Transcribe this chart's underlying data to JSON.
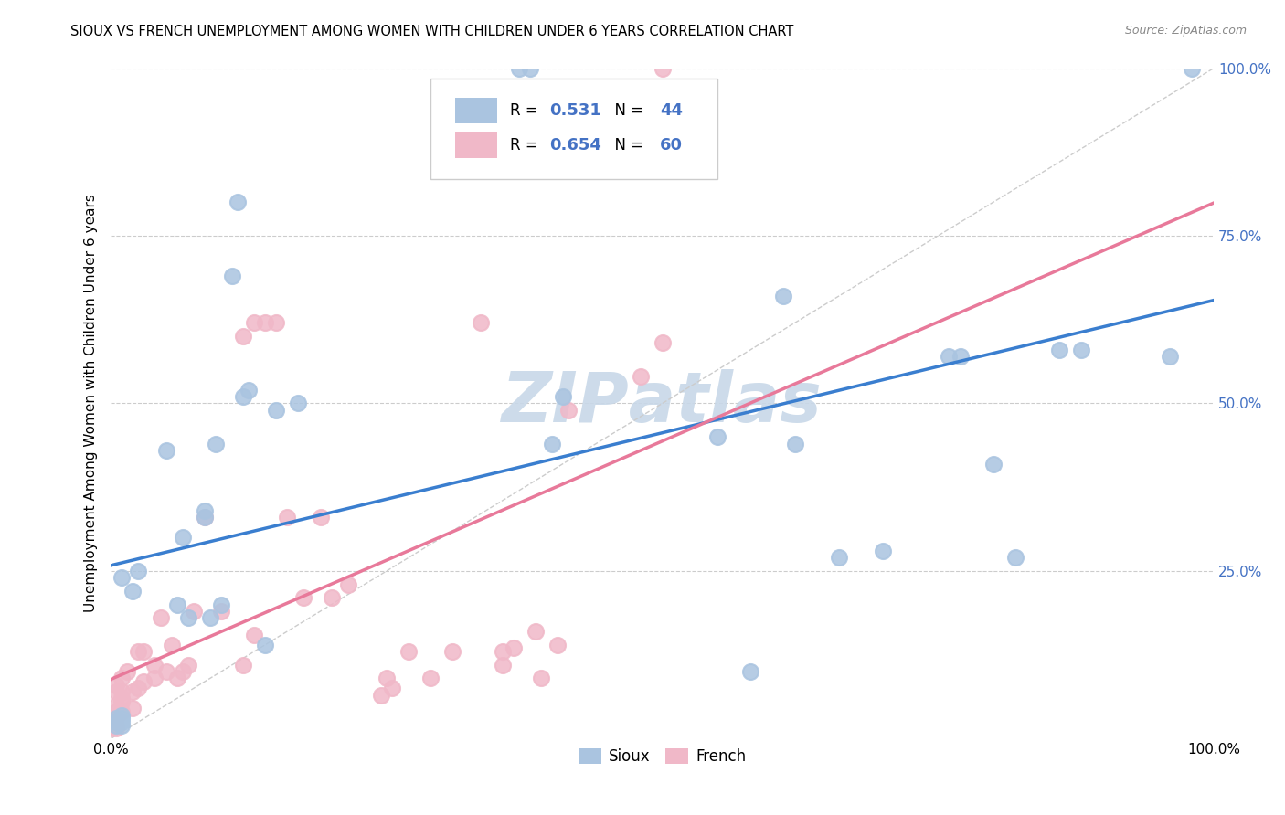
{
  "title": "SIOUX VS FRENCH UNEMPLOYMENT AMONG WOMEN WITH CHILDREN UNDER 6 YEARS CORRELATION CHART",
  "source": "Source: ZipAtlas.com",
  "ylabel": "Unemployment Among Women with Children Under 6 years",
  "xlim": [
    0,
    1.0
  ],
  "ylim": [
    0,
    1.0
  ],
  "sioux_color": "#aac4e0",
  "french_color": "#f0b8c8",
  "sioux_R": 0.531,
  "sioux_N": 44,
  "french_R": 0.654,
  "french_N": 60,
  "sioux_line_color": "#3a7ecf",
  "french_line_color": "#e8799a",
  "watermark_color": "#c8d8e8",
  "sioux_x": [
    0.005,
    0.005,
    0.005,
    0.01,
    0.01,
    0.01,
    0.01,
    0.01,
    0.02,
    0.025,
    0.05,
    0.06,
    0.065,
    0.07,
    0.085,
    0.085,
    0.09,
    0.095,
    0.1,
    0.11,
    0.115,
    0.12,
    0.125,
    0.14,
    0.15,
    0.17,
    0.37,
    0.38,
    0.4,
    0.41,
    0.55,
    0.58,
    0.61,
    0.62,
    0.66,
    0.7,
    0.76,
    0.77,
    0.8,
    0.82,
    0.86,
    0.88,
    0.96,
    0.98
  ],
  "sioux_y": [
    0.02,
    0.025,
    0.03,
    0.02,
    0.025,
    0.03,
    0.035,
    0.24,
    0.22,
    0.25,
    0.43,
    0.2,
    0.3,
    0.18,
    0.33,
    0.34,
    0.18,
    0.44,
    0.2,
    0.69,
    0.8,
    0.51,
    0.52,
    0.14,
    0.49,
    0.5,
    1.0,
    1.0,
    0.44,
    0.51,
    0.45,
    0.1,
    0.66,
    0.44,
    0.27,
    0.28,
    0.57,
    0.57,
    0.41,
    0.27,
    0.58,
    0.58,
    0.57,
    1.0
  ],
  "french_x": [
    0.0,
    0.0,
    0.005,
    0.005,
    0.005,
    0.005,
    0.005,
    0.005,
    0.005,
    0.01,
    0.01,
    0.01,
    0.01,
    0.01,
    0.015,
    0.02,
    0.02,
    0.025,
    0.025,
    0.03,
    0.03,
    0.04,
    0.04,
    0.045,
    0.05,
    0.055,
    0.06,
    0.065,
    0.07,
    0.075,
    0.085,
    0.1,
    0.12,
    0.13,
    0.14,
    0.15,
    0.16,
    0.175,
    0.19,
    0.2,
    0.215,
    0.25,
    0.27,
    0.29,
    0.31,
    0.335,
    0.355,
    0.39,
    0.405,
    0.415,
    0.48,
    0.5,
    0.5,
    0.12,
    0.13,
    0.245,
    0.255,
    0.355,
    0.365,
    0.385
  ],
  "french_y": [
    0.015,
    0.02,
    0.015,
    0.02,
    0.03,
    0.04,
    0.05,
    0.07,
    0.08,
    0.04,
    0.055,
    0.06,
    0.07,
    0.09,
    0.1,
    0.045,
    0.07,
    0.075,
    0.13,
    0.085,
    0.13,
    0.09,
    0.11,
    0.18,
    0.1,
    0.14,
    0.09,
    0.1,
    0.11,
    0.19,
    0.33,
    0.19,
    0.6,
    0.62,
    0.62,
    0.62,
    0.33,
    0.21,
    0.33,
    0.21,
    0.23,
    0.09,
    0.13,
    0.09,
    0.13,
    0.62,
    0.11,
    0.09,
    0.14,
    0.49,
    0.54,
    0.59,
    1.0,
    0.11,
    0.155,
    0.065,
    0.075,
    0.13,
    0.135,
    0.16
  ]
}
